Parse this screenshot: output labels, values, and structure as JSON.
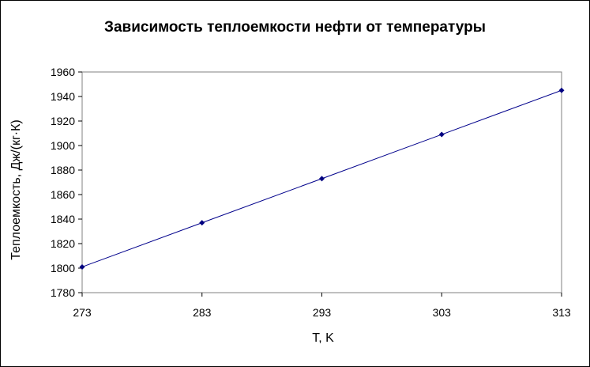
{
  "chart_data": {
    "type": "line",
    "title": "Зависимость теплоемкости нефти от температуры",
    "xlabel": "T, K",
    "ylabel": "Теплоемкость, Дж/(кг·К)",
    "x": [
      273,
      283,
      293,
      303,
      313
    ],
    "series": [
      {
        "values": [
          1801,
          1837,
          1873,
          1909,
          1945
        ]
      }
    ],
    "xlim": [
      273,
      313
    ],
    "ylim": [
      1780,
      1960
    ],
    "xticks": [
      "273",
      "283",
      "293",
      "303",
      "313"
    ],
    "yticks": [
      "1780",
      "1800",
      "1820",
      "1840",
      "1860",
      "1880",
      "1900",
      "1920",
      "1940",
      "1960"
    ],
    "grid": false,
    "legend": "none",
    "line_color": "#00008B",
    "marker_color": "#000080"
  }
}
